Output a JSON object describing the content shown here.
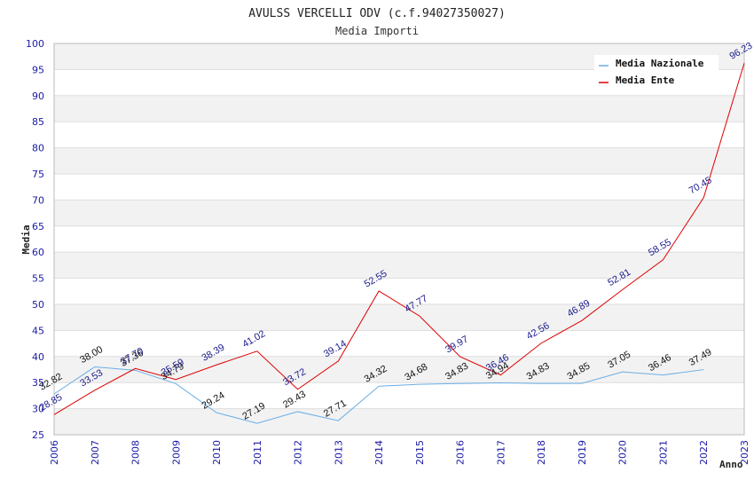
{
  "chart_data": {
    "type": "line",
    "title": "AVULSS VERCELLI ODV (c.f.94027350027)",
    "subtitle": "Media Importi",
    "xlabel": "Anno",
    "ylabel": "Media",
    "ylim": [
      25,
      100
    ],
    "yticks": [
      "25",
      "30",
      "35",
      "40",
      "45",
      "50",
      "55",
      "60",
      "65",
      "70",
      "75",
      "80",
      "85",
      "90",
      "95",
      "100"
    ],
    "categories": [
      "2006",
      "2007",
      "2008",
      "2009",
      "2010",
      "2011",
      "2012",
      "2013",
      "2014",
      "2015",
      "2016",
      "2017",
      "2018",
      "2019",
      "2020",
      "2021",
      "2022",
      "2023"
    ],
    "grid": "horizontal bands",
    "legend_position": "top-right",
    "series": [
      {
        "name": "Media Nazionale",
        "color": "#6aaee6",
        "values": [
          32.82,
          38.0,
          37.36,
          34.79,
          29.24,
          27.19,
          29.43,
          27.71,
          34.32,
          34.68,
          34.83,
          34.94,
          34.83,
          34.85,
          37.05,
          36.46,
          37.49,
          null
        ],
        "labels": [
          "32.82",
          "38.00",
          "37.36",
          "34.79",
          "29.24",
          "27.19",
          "29.43",
          "27.71",
          "34.32",
          "34.68",
          "34.83",
          "34.94",
          "34.83",
          "34.85",
          "37.05",
          "36.46",
          "37.49",
          ""
        ]
      },
      {
        "name": "Media Ente",
        "color": "#dd0000",
        "values": [
          28.85,
          33.53,
          37.7,
          35.59,
          38.39,
          41.02,
          33.72,
          39.14,
          52.55,
          47.77,
          39.97,
          36.46,
          42.56,
          46.89,
          52.81,
          58.55,
          70.45,
          96.23
        ],
        "labels": [
          "28.85",
          "33.53",
          "37.70",
          "35.59",
          "38.39",
          "41.02",
          "33.72",
          "39.14",
          "52.55",
          "47.77",
          "39.97",
          "36.46",
          "42.56",
          "46.89",
          "52.81",
          "58.55",
          "70.45",
          "96.23"
        ]
      }
    ]
  }
}
